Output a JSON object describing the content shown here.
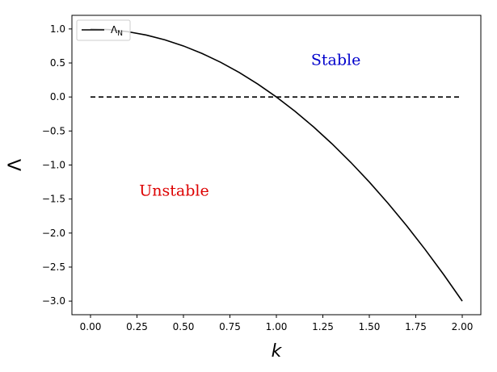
{
  "chart_data": {
    "type": "line",
    "title": "",
    "xlabel": "k",
    "ylabel": "Λ",
    "xlim": [
      -0.1,
      2.1
    ],
    "ylim": [
      -3.2,
      1.2
    ],
    "x_ticks": [
      0.0,
      0.25,
      0.5,
      0.75,
      1.0,
      1.25,
      1.5,
      1.75,
      2.0
    ],
    "x_tick_labels": [
      "0.00",
      "0.25",
      "0.50",
      "0.75",
      "1.00",
      "1.25",
      "1.50",
      "1.75",
      "2.00"
    ],
    "y_ticks": [
      1.0,
      0.5,
      0.0,
      -0.5,
      -1.0,
      -1.5,
      -2.0,
      -2.5,
      -3.0
    ],
    "y_tick_labels": [
      "1.0",
      "0.5",
      "0.0",
      "−0.5",
      "−1.0",
      "−1.5",
      "−2.0",
      "−2.5",
      "−3.0"
    ],
    "grid": false,
    "legend": {
      "placement": "upper-left",
      "entries": [
        "Λ_N"
      ],
      "main": "Λ",
      "sub": "N"
    },
    "series": [
      {
        "name": "Λ_N",
        "color": "#000000",
        "style": "solid",
        "x": [
          0.0,
          0.1,
          0.2,
          0.3,
          0.4,
          0.5,
          0.6,
          0.7,
          0.8,
          0.9,
          1.0,
          1.1,
          1.2,
          1.3,
          1.4,
          1.5,
          1.6,
          1.7,
          1.8,
          1.9,
          2.0
        ],
        "y": [
          1.0,
          0.99,
          0.96,
          0.91,
          0.84,
          0.75,
          0.64,
          0.51,
          0.36,
          0.19,
          0.0,
          -0.21,
          -0.44,
          -0.69,
          -0.96,
          -1.25,
          -1.56,
          -1.89,
          -2.24,
          -2.61,
          -3.0
        ]
      },
      {
        "name": "",
        "color": "#000000",
        "style": "dashed",
        "x": [
          0.0,
          2.0
        ],
        "y": [
          0.0,
          0.0
        ]
      }
    ],
    "annotations": [
      {
        "text": "Stable",
        "x": 1.32,
        "y": 0.47,
        "color": "#0000cc"
      },
      {
        "text": "Unstable",
        "x": 0.45,
        "y": -1.45,
        "color": "#dd0000"
      }
    ]
  }
}
